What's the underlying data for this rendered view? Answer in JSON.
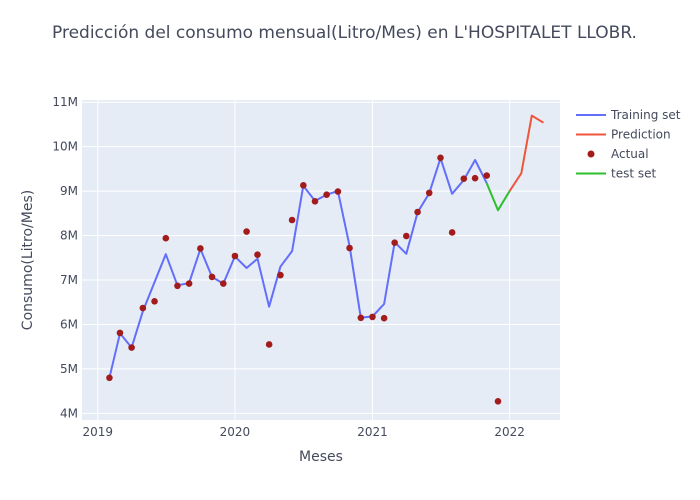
{
  "chart_data": {
    "type": "line",
    "title": "Predicción del consumo mensual(Litro/Mes) en L'HOSPITALET LLOBR.",
    "xlabel": "Meses",
    "ylabel": "Consumo(Litro/Mes)",
    "xlim": [
      "2018-11-20",
      "2022-05-15"
    ],
    "ylim": [
      3850000,
      11050000
    ],
    "x_ticks": [
      {
        "date": "2019-01-01",
        "label": "2019"
      },
      {
        "date": "2020-01-01",
        "label": "2020"
      },
      {
        "date": "2021-01-01",
        "label": "2021"
      },
      {
        "date": "2022-01-01",
        "label": "2022"
      }
    ],
    "y_ticks": [
      {
        "value": 4000000,
        "label": "4M"
      },
      {
        "value": 5000000,
        "label": "5M"
      },
      {
        "value": 6000000,
        "label": "6M"
      },
      {
        "value": 7000000,
        "label": "7M"
      },
      {
        "value": 8000000,
        "label": "8M"
      },
      {
        "value": 9000000,
        "label": "9M"
      },
      {
        "value": 10000000,
        "label": "10M"
      },
      {
        "value": 11000000,
        "label": "11M"
      }
    ],
    "grid": true,
    "legend_position": "right",
    "background": "#e5ecf6",
    "series": [
      {
        "name": "Training set",
        "mode": "line",
        "color": "#636efa",
        "x": [
          "2019-02-01",
          "2019-03-01",
          "2019-04-01",
          "2019-05-01",
          "2019-06-01",
          "2019-07-01",
          "2019-08-01",
          "2019-09-01",
          "2019-10-01",
          "2019-11-01",
          "2019-12-01",
          "2020-01-01",
          "2020-02-01",
          "2020-03-01",
          "2020-04-01",
          "2020-05-01",
          "2020-06-01",
          "2020-07-01",
          "2020-08-01",
          "2020-09-01",
          "2020-10-01",
          "2020-11-01",
          "2020-12-01",
          "2021-01-01",
          "2021-02-01",
          "2021-03-01",
          "2021-04-01",
          "2021-05-01",
          "2021-06-01",
          "2021-07-01",
          "2021-08-01",
          "2021-09-01",
          "2021-10-01",
          "2021-11-01"
        ],
        "y": [
          4800000,
          5800000,
          5480000,
          6300000,
          6950000,
          7580000,
          6880000,
          6930000,
          7700000,
          7070000,
          6920000,
          7530000,
          7270000,
          7480000,
          6400000,
          7300000,
          7650000,
          9120000,
          8780000,
          8920000,
          9000000,
          7760000,
          6150000,
          6180000,
          6460000,
          7850000,
          7590000,
          8520000,
          8950000,
          9740000,
          8940000,
          9250000,
          9700000,
          9180000
        ]
      },
      {
        "name": "Prediction",
        "mode": "line",
        "color": "#ef553b",
        "x": [
          "2022-01-01",
          "2022-02-01",
          "2022-03-01",
          "2022-04-01"
        ],
        "y": [
          9000000,
          9400000,
          10700000,
          10540000
        ]
      },
      {
        "name": "Actual",
        "mode": "markers",
        "color": "#a31c1c",
        "x": [
          "2019-02-01",
          "2019-03-01",
          "2019-04-01",
          "2019-05-01",
          "2019-06-01",
          "2019-07-01",
          "2019-08-01",
          "2019-09-01",
          "2019-10-01",
          "2019-11-01",
          "2019-12-01",
          "2020-01-01",
          "2020-02-01",
          "2020-03-01",
          "2020-04-01",
          "2020-05-01",
          "2020-06-01",
          "2020-07-01",
          "2020-08-01",
          "2020-09-01",
          "2020-10-01",
          "2020-11-01",
          "2020-12-01",
          "2021-01-01",
          "2021-02-01",
          "2021-03-01",
          "2021-04-01",
          "2021-05-01",
          "2021-06-01",
          "2021-07-01",
          "2021-08-01",
          "2021-09-01",
          "2021-10-01",
          "2021-11-01",
          "2021-12-01"
        ],
        "y": [
          4800000,
          5810000,
          5480000,
          6370000,
          6520000,
          7940000,
          6870000,
          6920000,
          7710000,
          7070000,
          6920000,
          7540000,
          8090000,
          7570000,
          5550000,
          7110000,
          8350000,
          9130000,
          8770000,
          8920000,
          8990000,
          7720000,
          6150000,
          6170000,
          6140000,
          7840000,
          7990000,
          8530000,
          8960000,
          9750000,
          8070000,
          9280000,
          9290000,
          9350000,
          4270000
        ]
      },
      {
        "name": "test set",
        "mode": "line",
        "color": "#2bbf2b",
        "x": [
          "2021-11-01",
          "2021-12-01",
          "2022-01-01"
        ],
        "y": [
          9180000,
          8570000,
          9000000
        ]
      }
    ]
  }
}
